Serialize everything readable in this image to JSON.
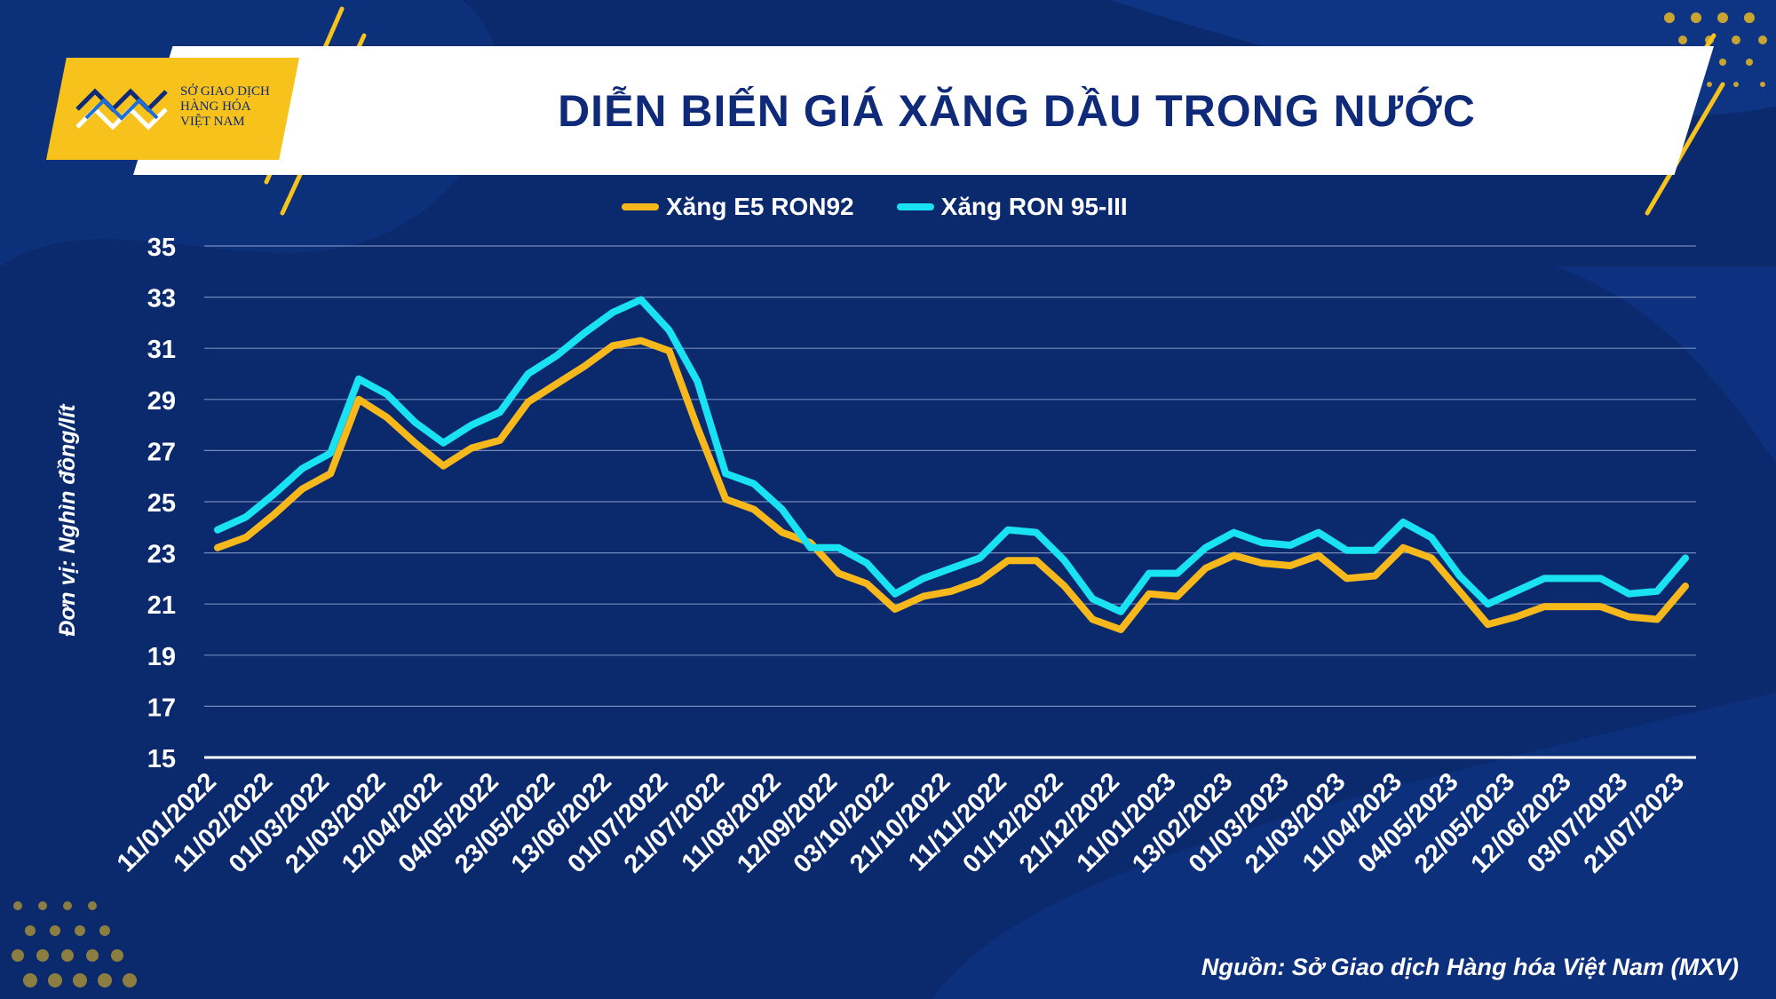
{
  "header": {
    "title": "DIỄN BIẾN GIÁ XĂNG DẦU TRONG NƯỚC",
    "logo_lines": [
      "SỞ GIAO DỊCH",
      "HÀNG HÓA",
      "VIỆT NAM"
    ]
  },
  "source": "Nguồn: Sở Giao dịch Hàng hóa Việt Nam (MXV)",
  "colors": {
    "background": "#0b2a6e",
    "accent": "#f7c21c",
    "series_e5": "#f7b81c",
    "series_ron95": "#19e3f2",
    "title": "#0e2a78"
  },
  "chart_data": {
    "type": "line",
    "title": "DIỄN BIẾN GIÁ XĂNG DẦU TRONG NƯỚC",
    "xlabel": "",
    "ylabel": "Đơn vị: Nghìn đồng/lít",
    "ylim": [
      15,
      35
    ],
    "yticks": [
      15,
      17,
      19,
      21,
      23,
      25,
      27,
      29,
      31,
      33,
      35
    ],
    "grid": true,
    "legend_position": "top",
    "x_tick_labels": [
      "11/01/2022",
      "11/02/2022",
      "01/03/2022",
      "21/03/2022",
      "12/04/2022",
      "04/05/2022",
      "23/05/2022",
      "13/06/2022",
      "01/07/2022",
      "21/07/2022",
      "11/08/2022",
      "12/09/2022",
      "03/10/2022",
      "21/10/2022",
      "11/11/2022",
      "01/12/2022",
      "21/12/2022",
      "11/01/2023",
      "13/02/2023",
      "01/03/2023",
      "21/03/2023",
      "11/04/2023",
      "04/05/2023",
      "22/05/2023",
      "12/06/2023",
      "03/07/2023",
      "21/07/2023"
    ],
    "series": [
      {
        "name": "Xăng E5 RON92",
        "values": [
          23.2,
          23.6,
          24.5,
          25.5,
          26.1,
          29.0,
          28.3,
          27.3,
          26.4,
          27.1,
          27.4,
          28.9,
          29.6,
          30.3,
          31.1,
          31.3,
          30.9,
          27.9,
          25.1,
          24.7,
          23.8,
          23.4,
          22.2,
          21.8,
          20.8,
          21.3,
          21.5,
          21.9,
          22.7,
          22.7,
          21.7,
          20.4,
          20.0,
          21.4,
          21.3,
          22.4,
          22.9,
          22.6,
          22.5,
          22.9,
          22.0,
          22.1,
          23.2,
          22.8,
          21.5,
          20.2,
          20.5,
          20.9,
          20.9,
          20.9,
          20.5,
          20.4,
          21.7
        ]
      },
      {
        "name": "Xăng RON 95-III",
        "values": [
          23.9,
          24.4,
          25.3,
          26.3,
          26.9,
          29.8,
          29.2,
          28.1,
          27.3,
          28.0,
          28.5,
          30.0,
          30.7,
          31.6,
          32.4,
          32.9,
          31.7,
          29.7,
          26.1,
          25.7,
          24.7,
          23.2,
          23.2,
          22.6,
          21.4,
          22.0,
          22.4,
          22.8,
          23.9,
          23.8,
          22.7,
          21.2,
          20.7,
          22.2,
          22.2,
          23.2,
          23.8,
          23.4,
          23.3,
          23.8,
          23.1,
          23.1,
          24.2,
          23.6,
          22.1,
          21.0,
          21.5,
          22.0,
          22.0,
          22.0,
          21.4,
          21.5,
          22.8
        ]
      }
    ]
  }
}
